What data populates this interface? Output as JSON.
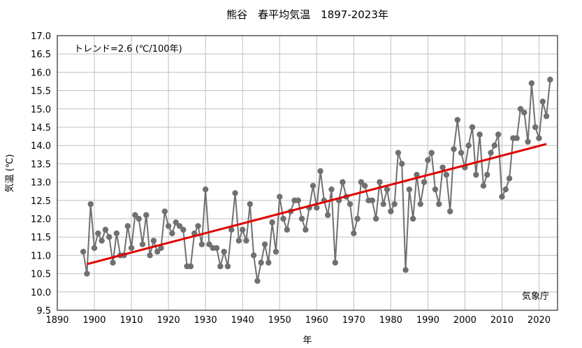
{
  "chart_data": {
    "type": "line",
    "title": "熊谷　春平均気温　1897-2023年",
    "xlabel": "年",
    "ylabel": "気温 (℃)",
    "annotation": "トレンド=2.6 (℃/100年)",
    "credit": "気象庁",
    "xlim": [
      1890,
      2025
    ],
    "ylim": [
      9.5,
      17.0
    ],
    "x_ticks": [
      1890,
      1900,
      1910,
      1920,
      1930,
      1940,
      1950,
      1960,
      1970,
      1980,
      1990,
      2000,
      2010,
      2020
    ],
    "y_ticks": [
      9.5,
      10.0,
      10.5,
      11.0,
      11.5,
      12.0,
      12.5,
      13.0,
      13.5,
      14.0,
      14.5,
      15.0,
      15.5,
      16.0,
      16.5,
      17.0
    ],
    "grid": true,
    "colors": {
      "series": "#707070",
      "trend": "#e00000",
      "grid": "#c0c0c0"
    },
    "series": [
      {
        "x": [
          1897,
          1898,
          1899,
          1900,
          1901,
          1902,
          1903,
          1904,
          1905,
          1906,
          1907,
          1908,
          1909,
          1910,
          1911,
          1912,
          1913,
          1914,
          1915,
          1916,
          1917,
          1918,
          1919,
          1920,
          1921,
          1922,
          1923,
          1924,
          1925,
          1926,
          1927,
          1928,
          1929,
          1930,
          1931,
          1932,
          1933,
          1934,
          1935,
          1936,
          1937,
          1938,
          1939,
          1940,
          1941,
          1942,
          1943,
          1944,
          1945,
          1946,
          1947,
          1948,
          1949,
          1950,
          1951,
          1952,
          1953,
          1954,
          1955,
          1956,
          1957,
          1958,
          1959,
          1960,
          1961,
          1962,
          1963,
          1964,
          1965,
          1966,
          1967,
          1968,
          1969,
          1970,
          1971,
          1972,
          1973,
          1974,
          1975,
          1976,
          1977,
          1978,
          1979,
          1980,
          1981,
          1982,
          1983,
          1984,
          1985,
          1986,
          1987,
          1988,
          1989,
          1990,
          1991,
          1992,
          1993,
          1994,
          1995,
          1996,
          1997,
          1998,
          1999,
          2000,
          2001,
          2002,
          2003,
          2004,
          2005,
          2006,
          2007,
          2008,
          2009,
          2010,
          2011,
          2012,
          2013,
          2014,
          2015,
          2016,
          2017,
          2018,
          2019,
          2020,
          2021,
          2022,
          2023
        ],
        "y": [
          11.1,
          10.5,
          12.4,
          11.2,
          11.6,
          11.4,
          11.7,
          11.5,
          10.8,
          11.6,
          11.0,
          11.0,
          11.8,
          11.2,
          12.1,
          12.0,
          11.3,
          12.1,
          11.0,
          11.4,
          11.1,
          11.2,
          12.2,
          11.8,
          11.6,
          11.9,
          11.8,
          11.7,
          10.7,
          10.7,
          11.6,
          11.8,
          11.3,
          12.8,
          11.3,
          11.2,
          11.2,
          10.7,
          11.1,
          10.7,
          11.7,
          12.7,
          11.4,
          11.7,
          11.4,
          12.4,
          11.0,
          10.3,
          10.8,
          11.3,
          10.8,
          11.9,
          11.1,
          12.6,
          12.0,
          11.7,
          12.2,
          12.5,
          12.5,
          12.0,
          11.7,
          12.3,
          12.9,
          12.3,
          13.3,
          12.5,
          12.1,
          12.8,
          10.8,
          12.5,
          13.0,
          12.6,
          12.4,
          11.6,
          12.0,
          13.0,
          12.9,
          12.5,
          12.5,
          12.0,
          13.0,
          12.4,
          12.8,
          12.2,
          12.4,
          13.8,
          13.5,
          10.6,
          12.8,
          12.0,
          13.2,
          12.4,
          13.0,
          13.6,
          13.8,
          12.8,
          12.4,
          13.4,
          13.2,
          12.2,
          13.9,
          14.7,
          13.8,
          13.4,
          14.0,
          14.5,
          13.2,
          14.3,
          12.9,
          13.2,
          13.8,
          14.0,
          14.3,
          12.6,
          12.8,
          13.1,
          14.2,
          14.2,
          15.0,
          14.9,
          14.1,
          15.7,
          14.5,
          14.2,
          15.2,
          14.8,
          15.8
        ]
      }
    ],
    "trend": {
      "x": [
        1898,
        2022
      ],
      "y": [
        10.76,
        14.04
      ]
    }
  }
}
